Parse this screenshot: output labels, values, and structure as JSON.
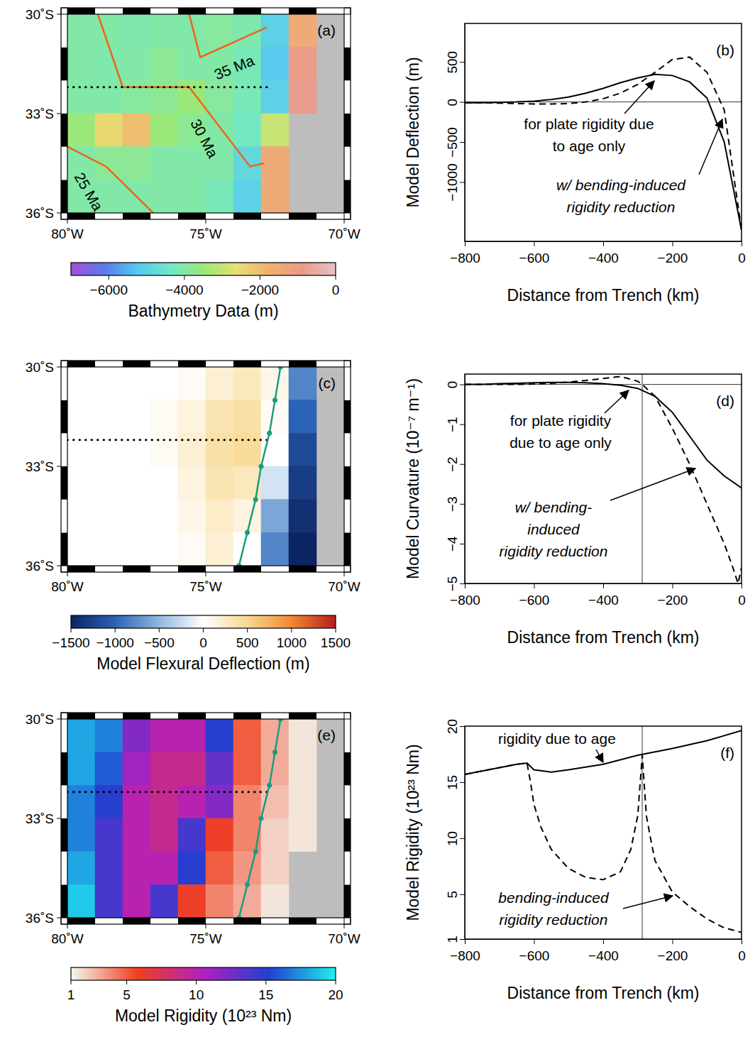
{
  "chart_data": [
    {
      "type": "heatmap",
      "panel": "(a)",
      "xlim": [
        -80,
        -70
      ],
      "ylim": [
        -36,
        -30
      ],
      "xticks": [
        {
          "value": -80,
          "label": "80˚W"
        },
        {
          "value": -75,
          "label": "75˚W"
        },
        {
          "value": -70,
          "label": "70˚W"
        }
      ],
      "yticks": [
        {
          "value": -30,
          "label": "30˚S"
        },
        {
          "value": -33,
          "label": "33˚S"
        },
        {
          "value": -36,
          "label": "36˚S"
        }
      ],
      "lon": [
        -79.5,
        -78.5,
        -77.5,
        -76.5,
        -75.5,
        -74.5,
        -73.5,
        -72.5,
        -71.5,
        -70.5
      ],
      "lat": [
        -30.5,
        -31.5,
        -32.5,
        -33.5,
        -34.5,
        -35.5
      ],
      "cells": [
        [
          -4000,
          -4000,
          -4100,
          -4000,
          -4000,
          -3900,
          -4100,
          -5000,
          -1500,
          null
        ],
        [
          -4000,
          -4100,
          -4000,
          -3800,
          -4000,
          -4000,
          -4200,
          -5200,
          -1000,
          null
        ],
        [
          -4000,
          -4000,
          -3900,
          -3800,
          -3500,
          -3900,
          -4200,
          -5000,
          -800,
          null
        ],
        [
          -3500,
          -2500,
          -2000,
          -3500,
          -3800,
          -4000,
          -4300,
          -3000,
          null,
          null
        ],
        [
          -4000,
          -3800,
          -3800,
          -4000,
          -4000,
          -4000,
          -4800,
          -1500,
          null,
          null
        ],
        [
          -4000,
          -4000,
          -4000,
          -4000,
          -4000,
          -4200,
          -5000,
          -1500,
          null,
          null
        ]
      ],
      "colorbar": {
        "title": "Bathymetry Data (m)",
        "range": [
          -7000,
          0
        ],
        "ticks": [
          {
            "value": -6000,
            "label": "−6000"
          },
          {
            "value": -4000,
            "label": "−4000"
          },
          {
            "value": -2000,
            "label": "−2000"
          },
          0
        ],
        "colors": [
          "#a64dd9",
          "#5a7be8",
          "#55c8f0",
          "#70e8c8",
          "#9be87a",
          "#e6e070",
          "#f0b070",
          "#e89a8a",
          "#e8c0c8"
        ]
      },
      "isochrons": [
        {
          "name": "35 Ma",
          "color": "#f0631a",
          "lon": [
            -75.6,
            -75.2,
            -72.8
          ],
          "lat": [
            -30,
            -31.3,
            -30.4
          ]
        },
        {
          "name": "30 Ma",
          "color": "#f0631a",
          "lon": [
            -78.9,
            -78.0,
            -75.6,
            -73.4,
            -72.9
          ],
          "lat": [
            -30,
            -32.2,
            -32.2,
            -34.6,
            -34.5
          ]
        },
        {
          "name": "25 Ma",
          "color": "#f0631a",
          "lon": [
            -80,
            -78.6,
            -76.9
          ],
          "lat": [
            -34.0,
            -34.6,
            -36
          ]
        }
      ],
      "profile": {
        "color": "#000000",
        "line_style": "dotted",
        "lon": [
          -80,
          -72.7
        ],
        "lat": [
          -32.2,
          -32.2
        ]
      }
    },
    {
      "type": "line",
      "panel": "(b)",
      "xlabel": "Distance from Trench (km)",
      "ylabel": "Model Deflection (m)",
      "xlim": [
        -800,
        0
      ],
      "ylim": [
        -1740,
        980
      ],
      "xticks": [
        {
          "value": -800,
          "label": "−800"
        },
        {
          "value": -600,
          "label": "−600"
        },
        {
          "value": -400,
          "label": "−400"
        },
        {
          "value": -200,
          "label": "−200"
        },
        0
      ],
      "yticks": [
        500,
        0,
        {
          "value": -500,
          "label": "−500"
        },
        {
          "value": -1000,
          "label": "−1000"
        }
      ],
      "series": [
        {
          "color": "#000000",
          "line_style": "solid",
          "x": [
            -800,
            -750,
            -700,
            -650,
            -600,
            -550,
            -500,
            -450,
            -400,
            -350,
            -300,
            -250,
            -200,
            -150,
            -100,
            -50,
            0
          ],
          "values": [
            -10,
            -10,
            -5,
            0,
            10,
            30,
            60,
            110,
            170,
            240,
            300,
            345,
            330,
            250,
            50,
            -500,
            -1600
          ]
        },
        {
          "color": "#000000",
          "line_style": "dashed",
          "x": [
            -800,
            -750,
            -700,
            -650,
            -600,
            -550,
            -500,
            -450,
            -400,
            -350,
            -300,
            -250,
            -200,
            -150,
            -100,
            -50,
            0
          ],
          "values": [
            -10,
            -10,
            -15,
            -20,
            -25,
            -25,
            -20,
            0,
            40,
            110,
            220,
            370,
            530,
            560,
            370,
            -100,
            -1600
          ]
        }
      ],
      "annotations": [
        {
          "lines": [
            "for plate rigidity due",
            "to age only"
          ],
          "series": 0
        },
        {
          "lines": [
            "w/ bending-induced",
            "rigidity reduction"
          ],
          "series": 1
        }
      ]
    },
    {
      "type": "heatmap",
      "panel": "(c)",
      "xlim": [
        -80,
        -70
      ],
      "ylim": [
        -36,
        -30
      ],
      "xticks": [
        {
          "value": -80,
          "label": "80˚W"
        },
        {
          "value": -75,
          "label": "75˚W"
        },
        {
          "value": -70,
          "label": "70˚W"
        }
      ],
      "yticks": [
        {
          "value": -30,
          "label": "30˚S"
        },
        {
          "value": -33,
          "label": "33˚S"
        },
        {
          "value": -36,
          "label": "36˚S"
        }
      ],
      "lon": [
        -79.5,
        -78.5,
        -77.5,
        -76.5,
        -75.5,
        -74.5,
        -73.5,
        -72.5,
        -71.5,
        -70.5
      ],
      "lat": [
        -30.5,
        -31.5,
        -32.5,
        -33.5,
        -34.5,
        -35.5
      ],
      "cells": [
        [
          0,
          0,
          0,
          0,
          50,
          200,
          300,
          100,
          -800,
          null
        ],
        [
          0,
          0,
          0,
          50,
          150,
          350,
          400,
          50,
          -1000,
          null
        ],
        [
          0,
          0,
          0,
          50,
          200,
          400,
          450,
          0,
          -1200,
          null
        ],
        [
          0,
          0,
          0,
          0,
          150,
          350,
          300,
          -200,
          -1300,
          null
        ],
        [
          0,
          0,
          0,
          0,
          100,
          250,
          150,
          -600,
          -1400,
          null
        ],
        [
          0,
          0,
          0,
          0,
          50,
          200,
          0,
          -800,
          -1500,
          null
        ]
      ],
      "colorbar": {
        "title": "Model Flexural Deflection (m)",
        "range": [
          -1500,
          1500
        ],
        "ticks": [
          {
            "value": -1500,
            "label": "−1500"
          },
          {
            "value": -1000,
            "label": "−1000"
          },
          {
            "value": -500,
            "label": "−500"
          },
          0,
          500,
          1000,
          1500
        ],
        "colors": [
          "#0c2461",
          "#2a62b8",
          "#8fb8e0",
          "#ffffff",
          "#f8d890",
          "#f08830",
          "#b81c1c"
        ]
      },
      "trench": {
        "color": "#1a9b80",
        "marker": "circle",
        "lon": [
          -72.3,
          -72.5,
          -72.7,
          -73.0,
          -73.2,
          -73.5,
          -73.8
        ],
        "lat": [
          -30,
          -31,
          -32,
          -33,
          -34,
          -35,
          -36
        ]
      },
      "profile": {
        "color": "#000000",
        "line_style": "dotted",
        "lon": [
          -80,
          -72.7
        ],
        "lat": [
          -32.2,
          -32.2
        ]
      }
    },
    {
      "type": "line",
      "panel": "(d)",
      "xlabel": "Distance from Trench (km)",
      "ylabel": "Model Curvature (10⁻⁷ m⁻¹)",
      "xlim": [
        -800,
        0
      ],
      "ylim": [
        -5,
        0.26
      ],
      "xticks": [
        {
          "value": -800,
          "label": "−800"
        },
        {
          "value": -600,
          "label": "−600"
        },
        {
          "value": -400,
          "label": "−400"
        },
        {
          "value": -200,
          "label": "−200"
        },
        0
      ],
      "yticks": [
        0,
        {
          "value": -1,
          "label": "−1"
        },
        {
          "value": -2,
          "label": "−2"
        },
        {
          "value": -3,
          "label": "−3"
        },
        {
          "value": -4,
          "label": "−4"
        },
        {
          "value": -5,
          "label": "−5"
        }
      ],
      "vline": -287,
      "series": [
        {
          "color": "#000000",
          "line_style": "solid",
          "x": [
            -800,
            -750,
            -700,
            -650,
            -600,
            -550,
            -500,
            -450,
            -400,
            -350,
            -300,
            -250,
            -200,
            -150,
            -100,
            -50,
            0
          ],
          "values": [
            0,
            0,
            0.02,
            0.03,
            0.04,
            0.05,
            0.05,
            0.04,
            0.02,
            -0.02,
            -0.1,
            -0.3,
            -0.7,
            -1.3,
            -1.9,
            -2.3,
            -2.6
          ]
        },
        {
          "color": "#000000",
          "line_style": "dashed",
          "x": [
            -800,
            -750,
            -700,
            -650,
            -600,
            -550,
            -500,
            -450,
            -400,
            -350,
            -300,
            -287,
            -250,
            -200,
            -150,
            -100,
            -50,
            -25,
            -10,
            0
          ],
          "values": [
            0,
            0,
            0,
            0,
            0.01,
            0.03,
            0.06,
            0.1,
            0.15,
            0.2,
            0.08,
            0,
            -0.3,
            -1.1,
            -2.0,
            -3.0,
            -4.0,
            -4.6,
            -5.0,
            -4.6
          ]
        }
      ],
      "annotations": [
        {
          "lines": [
            "for plate rigidity",
            "due to age only"
          ],
          "series": 0
        },
        {
          "lines": [
            "w/ bending-",
            "induced",
            "rigidity reduction"
          ],
          "series": 1
        }
      ]
    },
    {
      "type": "heatmap",
      "panel": "(e)",
      "xlim": [
        -80,
        -70
      ],
      "ylim": [
        -36,
        -30
      ],
      "xticks": [
        {
          "value": -80,
          "label": "80˚W"
        },
        {
          "value": -75,
          "label": "75˚W"
        },
        {
          "value": -70,
          "label": "70˚W"
        }
      ],
      "yticks": [
        {
          "value": -30,
          "label": "30˚S"
        },
        {
          "value": -33,
          "label": "33˚S"
        },
        {
          "value": -36,
          "label": "36˚S"
        }
      ],
      "lon": [
        -79.5,
        -78.5,
        -77.5,
        -76.5,
        -75.5,
        -74.5,
        -73.5,
        -72.5,
        -71.5,
        -70.5
      ],
      "lat": [
        -30.5,
        -31.5,
        -32.5,
        -33.5,
        -34.5,
        -35.5
      ],
      "cells": [
        [
          18,
          17,
          12,
          10,
          10,
          15,
          5,
          3,
          1.5,
          null
        ],
        [
          18,
          16,
          11,
          9,
          9,
          13,
          5,
          3,
          1.5,
          null
        ],
        [
          17,
          15,
          10,
          9,
          10,
          12,
          4,
          2.5,
          1.5,
          null
        ],
        [
          17,
          14,
          10,
          9,
          14,
          6,
          4,
          2,
          1.5,
          null
        ],
        [
          18,
          14,
          10,
          10,
          15,
          5,
          3.5,
          2,
          null,
          null
        ],
        [
          19,
          14,
          10,
          14,
          6,
          4,
          3,
          1.5,
          null,
          null
        ]
      ],
      "colorbar": {
        "title": "Model Rigidity (10²³ Nm)",
        "range": [
          1,
          20
        ],
        "ticks": [
          1,
          5,
          10,
          15,
          20
        ],
        "colors": [
          "#f4f8f0",
          "#f04020",
          "#b020c0",
          "#2040d0",
          "#20f0f0"
        ]
      },
      "trench": {
        "color": "#1a9b80",
        "marker": "circle",
        "lon": [
          -72.3,
          -72.5,
          -72.7,
          -73.0,
          -73.2,
          -73.5,
          -73.8
        ],
        "lat": [
          -30,
          -31,
          -32,
          -33,
          -34,
          -35,
          -36
        ]
      },
      "profile": {
        "color": "#000000",
        "line_style": "dotted",
        "lon": [
          -80,
          -72.7
        ],
        "lat": [
          -32.2,
          -32.2
        ]
      }
    },
    {
      "type": "line",
      "panel": "(f)",
      "xlabel": "Distance from Trench (km)",
      "ylabel": "Model Rigidity (10²³ Nm)",
      "xlim": [
        -800,
        0
      ],
      "ylim": [
        1,
        20
      ],
      "xticks": [
        {
          "value": -800,
          "label": "−800"
        },
        {
          "value": -600,
          "label": "−600"
        },
        {
          "value": -400,
          "label": "−400"
        },
        {
          "value": -200,
          "label": "−200"
        },
        0
      ],
      "yticks": [
        1,
        5,
        10,
        15,
        20
      ],
      "vline": -287,
      "series": [
        {
          "color": "#000000",
          "line_style": "solid",
          "x": [
            -800,
            -750,
            -700,
            -650,
            -620,
            -600,
            -550,
            -500,
            -400,
            -300,
            -200,
            -100,
            0
          ],
          "values": [
            15.7,
            16.0,
            16.3,
            16.6,
            16.7,
            16.1,
            15.9,
            16.1,
            16.6,
            17.4,
            18.0,
            18.7,
            19.6
          ]
        },
        {
          "color": "#000000",
          "line_style": "dashed",
          "x": [
            -800,
            -750,
            -700,
            -650,
            -620,
            -610,
            -600,
            -580,
            -550,
            -500,
            -450,
            -400,
            -350,
            -320,
            -300,
            -287,
            -275,
            -260,
            -250,
            -200,
            -150,
            -100,
            -50,
            0
          ],
          "values": [
            15.7,
            16.0,
            16.3,
            16.6,
            16.7,
            15.0,
            13.0,
            11.0,
            9.0,
            7.3,
            6.5,
            6.3,
            7.0,
            9.0,
            12.0,
            17.4,
            12.0,
            9.5,
            8.0,
            5.2,
            3.9,
            2.8,
            2.0,
            1.6
          ]
        }
      ],
      "annotations": [
        {
          "lines": [
            "rigidity due to age"
          ],
          "series": 0
        },
        {
          "lines": [
            "bending-induced",
            "rigidity reduction"
          ],
          "series": 1
        }
      ]
    }
  ]
}
